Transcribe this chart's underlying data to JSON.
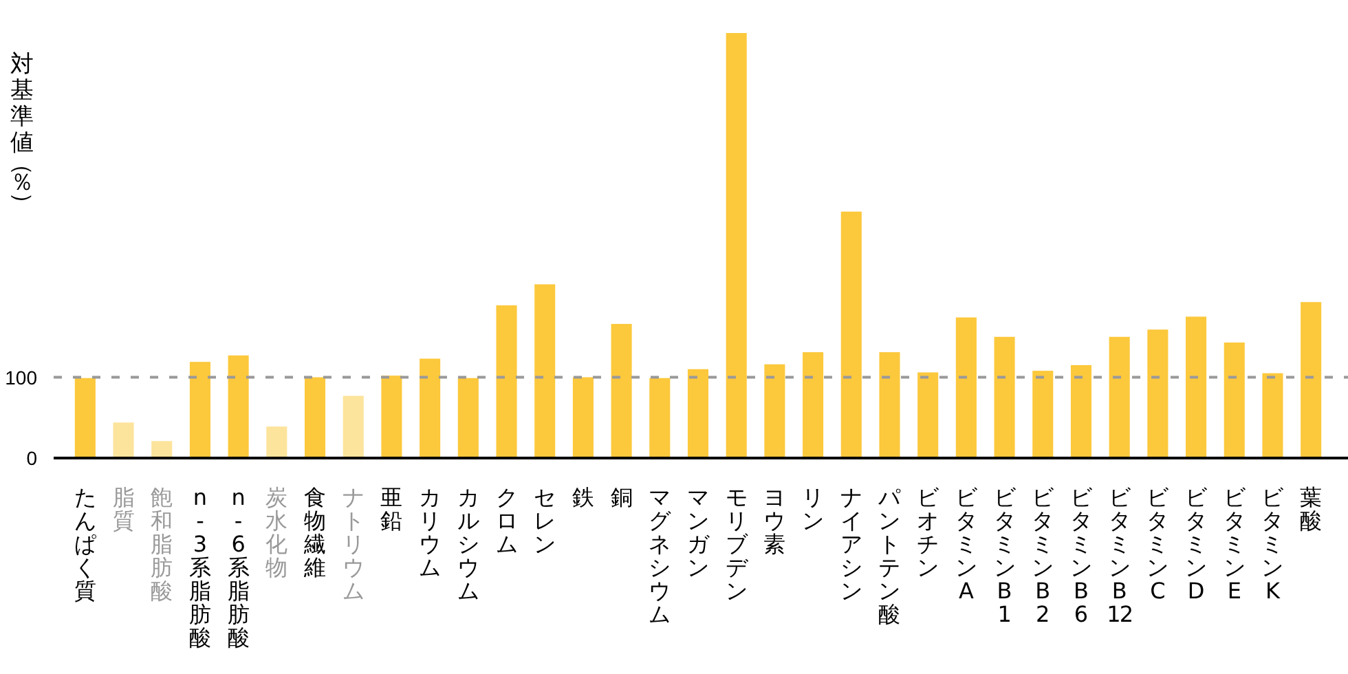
{
  "chart_data": {
    "type": "bar",
    "ylabel": "対基準値（％）",
    "categories": [
      "たんぱく質",
      "脂質",
      "飽和脂肪酸",
      "n-3系脂肪酸",
      "n-6系脂肪酸",
      "炭水化物",
      "食物繊維",
      "ナトリウム",
      "亜鉛",
      "カリウム",
      "カルシウム",
      "クロム",
      "セレン",
      "鉄",
      "銅",
      "マグネシウム",
      "マンガン",
      "モリブデン",
      "ヨウ素",
      "リン",
      "ナイアシン",
      "パントテン酸",
      "ビオチン",
      "ビタミンA",
      "ビタミンB1",
      "ビタミンB2",
      "ビタミンB6",
      "ビタミンB12",
      "ビタミンC",
      "ビタミンD",
      "ビタミンE",
      "ビタミンK",
      "葉酸"
    ],
    "values": [
      99,
      44,
      21,
      119,
      127,
      39,
      100,
      77,
      102,
      123,
      99,
      189,
      215,
      100,
      166,
      99,
      110,
      526,
      116,
      131,
      305,
      131,
      106,
      174,
      150,
      108,
      115,
      150,
      159,
      175,
      143,
      105,
      193
    ],
    "colors": [
      "#fcc83c",
      "#fde49c",
      "#fde49c",
      "#fcc83c",
      "#fcc83c",
      "#fde49c",
      "#fcc83c",
      "#fde49c",
      "#fcc83c",
      "#fcc83c",
      "#fcc83c",
      "#fcc83c",
      "#fcc83c",
      "#fcc83c",
      "#fcc83c",
      "#fcc83c",
      "#fcc83c",
      "#fcc83c",
      "#fcc83c",
      "#fcc83c",
      "#fcc83c",
      "#fcc83c",
      "#fcc83c",
      "#fcc83c",
      "#fcc83c",
      "#fcc83c",
      "#fcc83c",
      "#fcc83c",
      "#fcc83c",
      "#fcc83c",
      "#fcc83c",
      "#fcc83c",
      "#fcc83c"
    ],
    "ylim": [
      0,
      526
    ],
    "yticks": [
      0,
      100
    ],
    "ref_lines": [
      {
        "axis": "y",
        "value": 100,
        "color": "#999999",
        "line_style": "dashed"
      }
    ]
  }
}
